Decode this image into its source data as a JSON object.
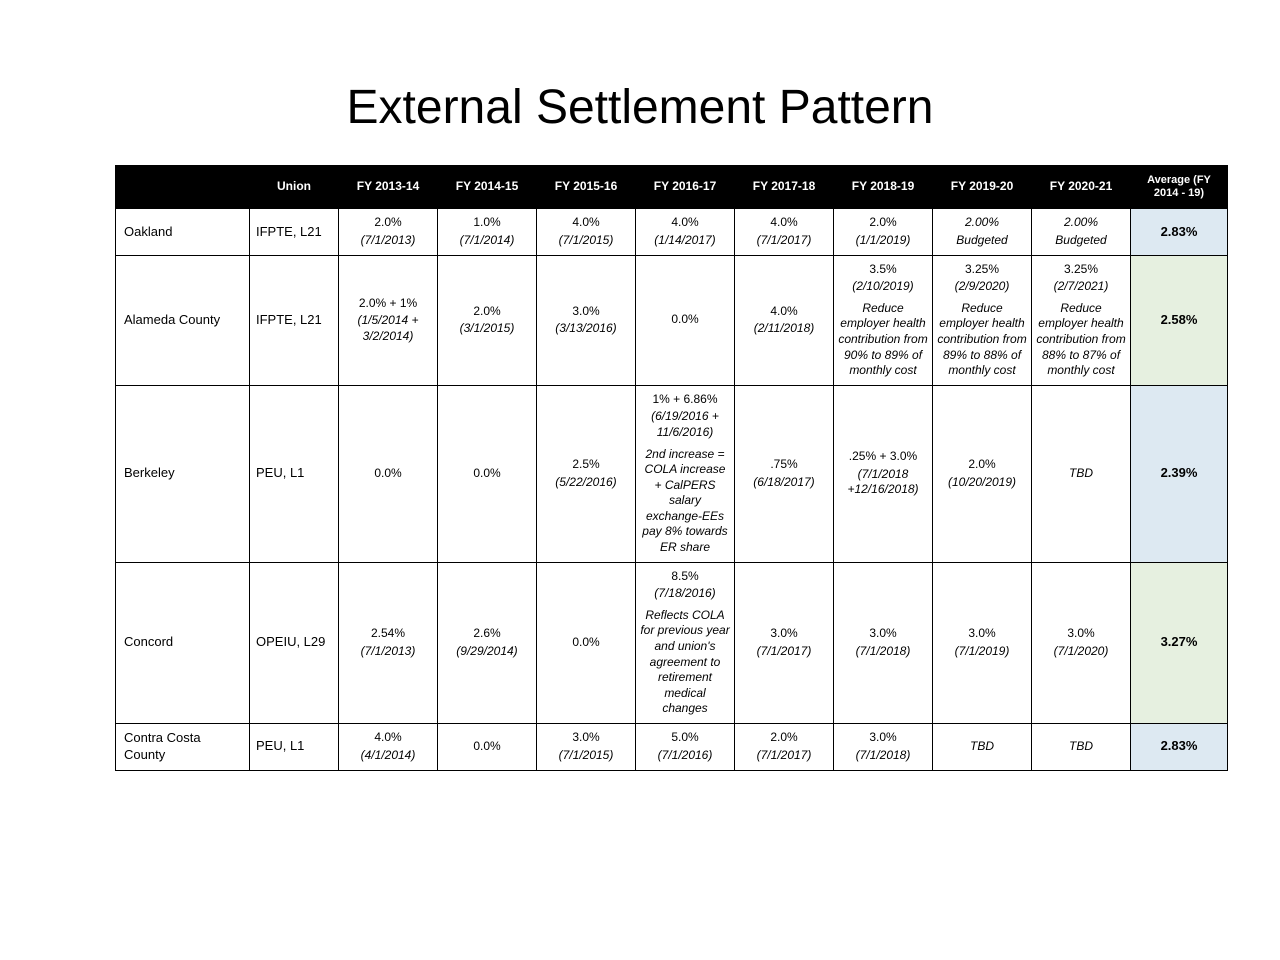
{
  "title": "External Settlement Pattern",
  "colors": {
    "header_bg": "#000000",
    "header_fg": "#ffffff",
    "avg_bg": "#dde9f2",
    "avg_bg_highlight": "#e6f0e0",
    "border": "#000000",
    "bg": "#ffffff"
  },
  "columns": [
    {
      "key": "entity",
      "label": ""
    },
    {
      "key": "union",
      "label": "Union"
    },
    {
      "key": "fy13_14",
      "label": "FY 2013-14"
    },
    {
      "key": "fy14_15",
      "label": "FY 2014-15"
    },
    {
      "key": "fy15_16",
      "label": "FY 2015-16"
    },
    {
      "key": "fy16_17",
      "label": "FY 2016-17"
    },
    {
      "key": "fy17_18",
      "label": "FY 2017-18"
    },
    {
      "key": "fy18_19",
      "label": "FY 2018-19"
    },
    {
      "key": "fy19_20",
      "label": "FY 2019-20"
    },
    {
      "key": "fy20_21",
      "label": "FY 2020-21"
    },
    {
      "key": "avg",
      "label": "Average (FY 2014 - 19)"
    }
  ],
  "rows": [
    {
      "entity": "Oakland",
      "union": "IFPTE, L21",
      "cells": [
        {
          "main": "2.0%",
          "sub": "(7/1/2013)"
        },
        {
          "main": "1.0%",
          "sub": "(7/1/2014)"
        },
        {
          "main": "4.0%",
          "sub": "(7/1/2015)"
        },
        {
          "main": "4.0%",
          "sub": "(1/14/2017)"
        },
        {
          "main": "4.0%",
          "sub": "(7/1/2017)"
        },
        {
          "main": "2.0%",
          "sub": "(1/1/2019)"
        },
        {
          "main": "2.00%",
          "sub": "Budgeted",
          "main_italic": true
        },
        {
          "main": "2.00%",
          "sub": "Budgeted",
          "main_italic": true
        }
      ],
      "avg": "2.83%",
      "avg_highlight": false
    },
    {
      "entity": "Alameda County",
      "union": "IFPTE, L21",
      "cells": [
        {
          "main": "2.0% + 1%",
          "sub": "(1/5/2014 + 3/2/2014)"
        },
        {
          "main": "2.0%",
          "sub": "(3/1/2015)"
        },
        {
          "main": "3.0%",
          "sub": "(3/13/2016)"
        },
        {
          "main": "0.0%"
        },
        {
          "main": "4.0%",
          "sub": "(2/11/2018)"
        },
        {
          "main": "3.5%",
          "sub": "(2/10/2019)",
          "note": "Reduce employer health contribution from 90% to 89% of monthly cost"
        },
        {
          "main": "3.25%",
          "sub": "(2/9/2020)",
          "note": "Reduce employer health contribution from 89% to 88% of monthly cost"
        },
        {
          "main": "3.25%",
          "sub": "(2/7/2021)",
          "note": "Reduce employer health contribution from 88% to 87% of monthly cost"
        }
      ],
      "avg": "2.58%",
      "avg_highlight": true
    },
    {
      "entity": "Berkeley",
      "union": "PEU, L1",
      "cells": [
        {
          "main": "0.0%"
        },
        {
          "main": "0.0%"
        },
        {
          "main": "2.5%",
          "sub": "(5/22/2016)"
        },
        {
          "main": "1% + 6.86%",
          "sub": "(6/19/2016 + 11/6/2016)",
          "note": "2nd increase = COLA increase + CalPERS salary exchange-EEs pay 8% towards ER share"
        },
        {
          "main": ".75%",
          "sub": "(6/18/2017)"
        },
        {
          "main": ".25% + 3.0%",
          "sub": "(7/1/2018 +12/16/2018)"
        },
        {
          "main": "2.0%",
          "sub": "(10/20/2019)"
        },
        {
          "main": "TBD",
          "main_italic": true
        }
      ],
      "avg": "2.39%",
      "avg_highlight": false
    },
    {
      "entity": "Concord",
      "union": "OPEIU, L29",
      "cells": [
        {
          "main": "2.54%",
          "sub": "(7/1/2013)"
        },
        {
          "main": "2.6%",
          "sub": "(9/29/2014)"
        },
        {
          "main": "0.0%"
        },
        {
          "main": "8.5%",
          "sub": "(7/18/2016)",
          "note": "Reflects COLA for previous year and union's agreement to retirement medical changes"
        },
        {
          "main": "3.0%",
          "sub": "(7/1/2017)"
        },
        {
          "main": "3.0%",
          "sub": "(7/1/2018)"
        },
        {
          "main": "3.0%",
          "sub": "(7/1/2019)"
        },
        {
          "main": "3.0%",
          "sub": "(7/1/2020)"
        }
      ],
      "avg": "3.27%",
      "avg_highlight": true
    },
    {
      "entity": "Contra Costa County",
      "union": "PEU, L1",
      "cells": [
        {
          "main": "4.0%",
          "sub": "(4/1/2014)"
        },
        {
          "main": "0.0%"
        },
        {
          "main": "3.0%",
          "sub": "(7/1/2015)"
        },
        {
          "main": "5.0%",
          "sub": "(7/1/2016)"
        },
        {
          "main": "2.0%",
          "sub": "(7/1/2017)"
        },
        {
          "main": "3.0%",
          "sub": "(7/1/2018)"
        },
        {
          "main": "TBD",
          "main_italic": true
        },
        {
          "main": "TBD",
          "main_italic": true
        }
      ],
      "avg": "2.83%",
      "avg_highlight": false
    }
  ]
}
